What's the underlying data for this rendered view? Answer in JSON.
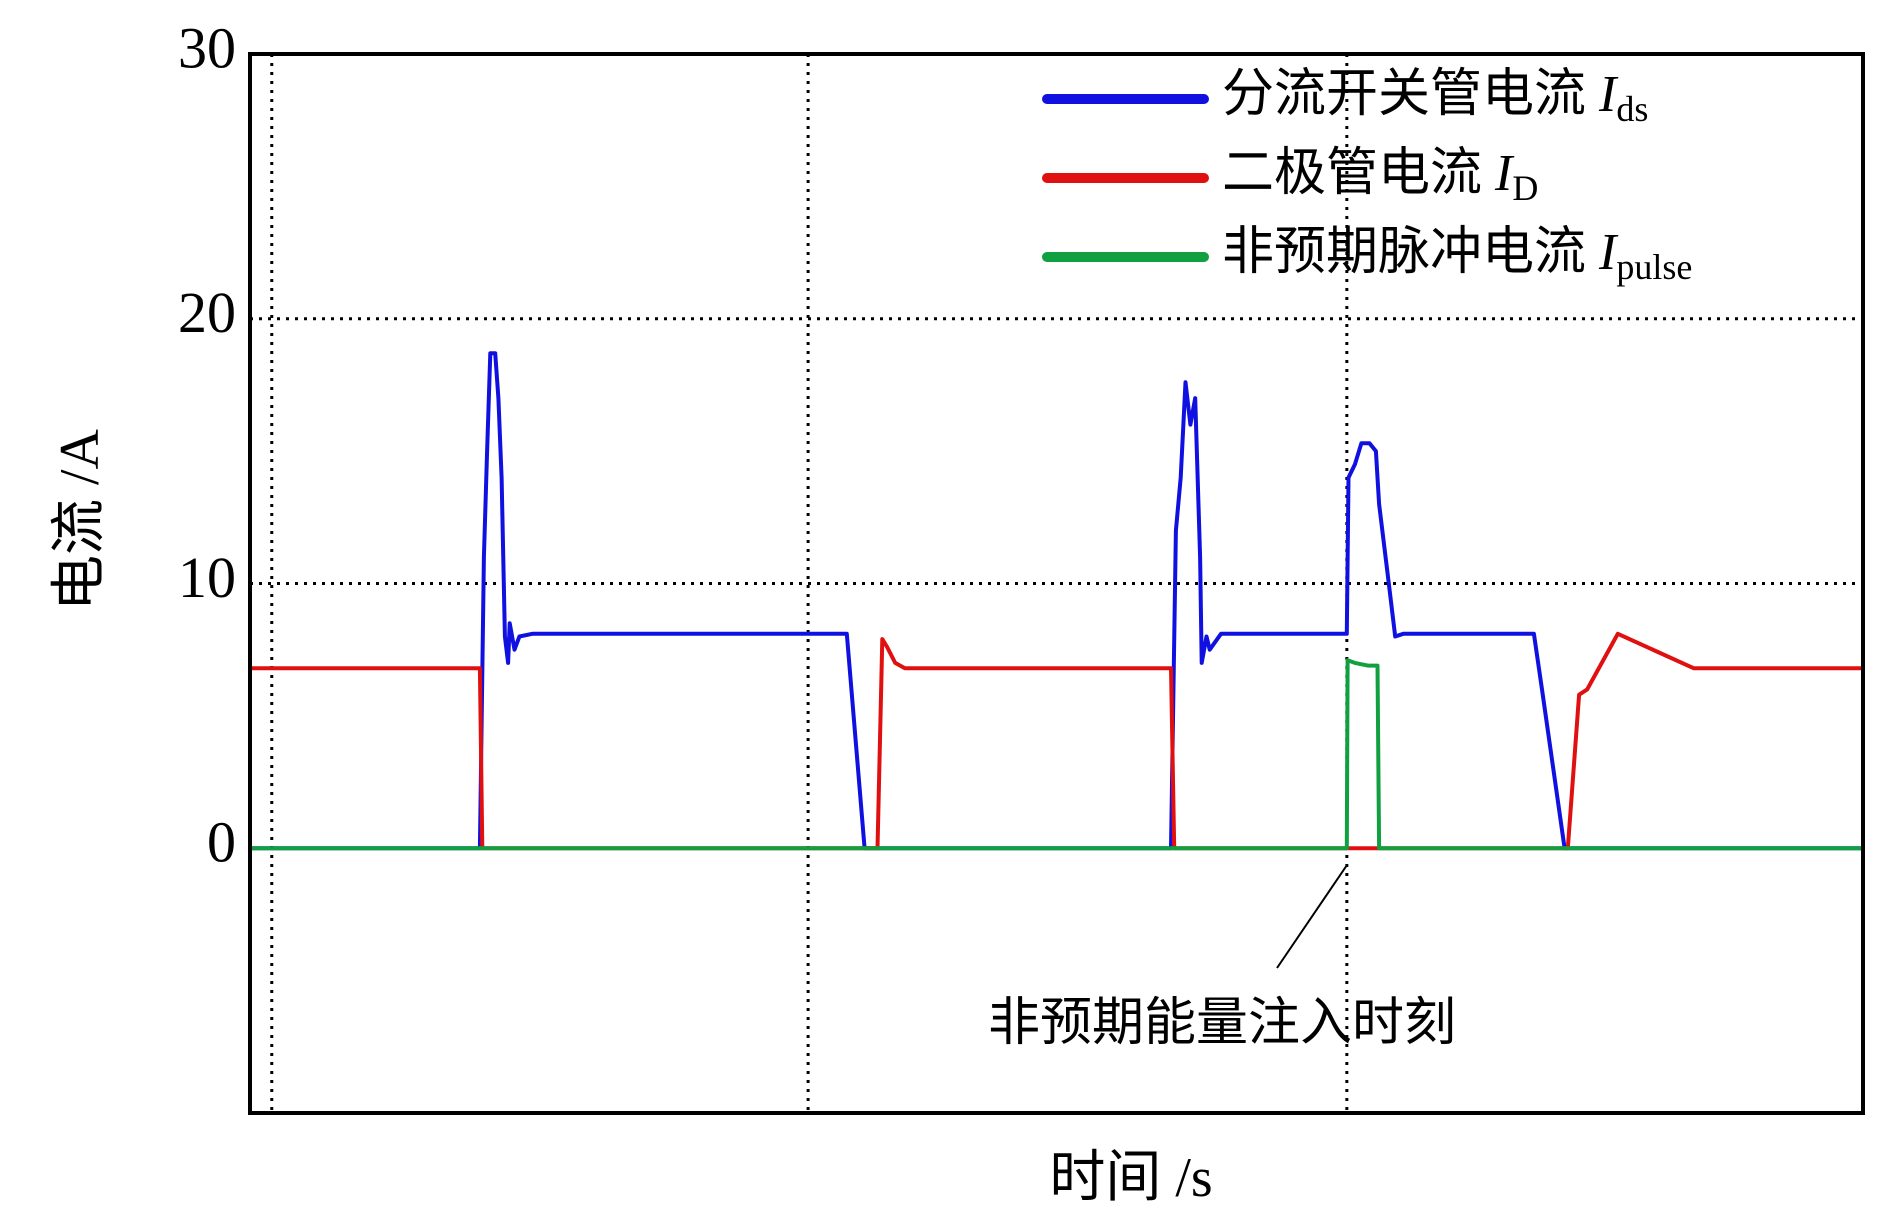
{
  "chart_data": {
    "type": "line",
    "xlabel": "时间 /s",
    "ylabel": "电流 /A",
    "ylim": [
      -10,
      30
    ],
    "yticks": [
      0,
      10,
      20,
      30
    ],
    "xlim": [
      0,
      100
    ],
    "xticks": [
      1.35,
      34.6,
      68.0
    ],
    "grid": true,
    "legend": "upper right",
    "annotation": "非预期能量注入时刻",
    "series": [
      {
        "name": "分流开关管电流 Ids",
        "color": "#1010e0",
        "x": [
          0,
          14.25,
          14.5,
          14.7,
          14.9,
          15.2,
          15.4,
          15.6,
          15.8,
          16.0,
          16.1,
          16.4,
          16.7,
          17.5,
          37.0,
          38.1,
          57.1,
          57.4,
          57.7,
          58.0,
          58.3,
          58.6,
          58.9,
          59.0,
          59.3,
          59.5,
          60.2,
          68.0,
          68.1,
          68.5,
          68.9,
          69.4,
          69.8,
          70.0,
          70.6,
          71.0,
          71.5,
          79.6,
          80.1,
          81.5,
          100
        ],
        "values": [
          0,
          0,
          11,
          15,
          18.7,
          18.7,
          17,
          14,
          8,
          7,
          8.5,
          7.5,
          8,
          8.1,
          8.1,
          0,
          0,
          12,
          14,
          17.6,
          16,
          17,
          11,
          7,
          8,
          7.5,
          8.1,
          8.1,
          14,
          14.5,
          15.3,
          15.3,
          15,
          13,
          10,
          8,
          8.1,
          8.1,
          6,
          0,
          0
        ]
      },
      {
        "name": "二极管电流 ID",
        "color": "#e01010",
        "x": [
          0,
          14.25,
          14.4,
          38.9,
          39.2,
          39.5,
          40.0,
          40.6,
          57.1,
          57.3,
          81.7,
          82.4,
          82.9,
          84.8,
          89.5,
          100
        ],
        "values": [
          6.8,
          6.8,
          0,
          0,
          7.9,
          7.6,
          7,
          6.8,
          6.8,
          0,
          0,
          5.8,
          6,
          8.1,
          6.8,
          6.8
        ]
      },
      {
        "name": "非预期脉冲电流 Ipulse",
        "color": "#10a040",
        "x": [
          0,
          68.0,
          68.05,
          68.5,
          69.3,
          69.9,
          70.0,
          100
        ],
        "values": [
          0,
          0,
          7.1,
          7.0,
          6.9,
          6.9,
          0,
          0
        ]
      }
    ]
  }
}
